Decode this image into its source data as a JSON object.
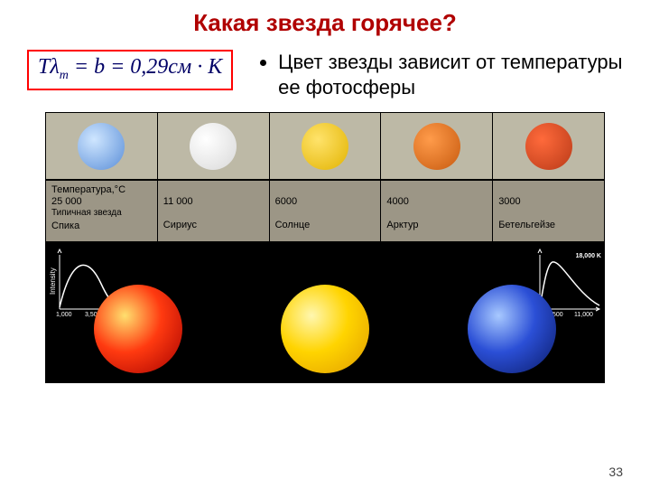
{
  "title": {
    "text": "Какая звезда горячее?",
    "color": "#b00000"
  },
  "bullet": {
    "text": "Цвет звезды зависит от температуры ее фотосферы"
  },
  "formula": {
    "html": "Tλ<sub class='sub'>m</sub> = b = 0,29см · К",
    "border_color": "#ff0000",
    "text_color": "#000066"
  },
  "table": {
    "swatch_bg": "#bdb9a6",
    "info_bg": "#9c9686",
    "temp_header": "Температура,°С",
    "typical_label": "Типичная звезда",
    "stars": [
      {
        "name": "Спика",
        "temp": "25 000",
        "swatch_gradient": [
          "#cfe6ff",
          "#5a8ed8"
        ]
      },
      {
        "name": "Сириус",
        "temp": "11 000",
        "swatch_gradient": [
          "#ffffff",
          "#d9d9d9"
        ]
      },
      {
        "name": "Солнце",
        "temp": "6000",
        "swatch_gradient": [
          "#ffe36b",
          "#e2b300"
        ]
      },
      {
        "name": "Арктур",
        "temp": "4000",
        "swatch_gradient": [
          "#ff9b4a",
          "#c75a0f"
        ]
      },
      {
        "name": "Бетельгейзе",
        "temp": "3000",
        "swatch_gradient": [
          "#ff6a3b",
          "#b93a18"
        ]
      }
    ]
  },
  "black_strip": {
    "bg": "#000000",
    "big_spheres": [
      {
        "name": "red-star",
        "gradient": [
          "#ffdf6e",
          "#ff3a10",
          "#a40000"
        ]
      },
      {
        "name": "yellow-star",
        "gradient": [
          "#fff7b0",
          "#ffd400",
          "#e09b00"
        ]
      },
      {
        "name": "blue-star",
        "gradient": [
          "#a8c9ff",
          "#2b4fd6",
          "#0a1a66"
        ]
      }
    ],
    "left_chart": {
      "ylabel": "Intensity",
      "ticks": [
        "1,000",
        "3,500"
      ],
      "curve_color": "#ffffff"
    },
    "right_chart": {
      "peak_label": "18,000 K",
      "ticks": [
        "500",
        "11,000"
      ],
      "curve_color": "#ffffff"
    }
  },
  "page_number": "33"
}
